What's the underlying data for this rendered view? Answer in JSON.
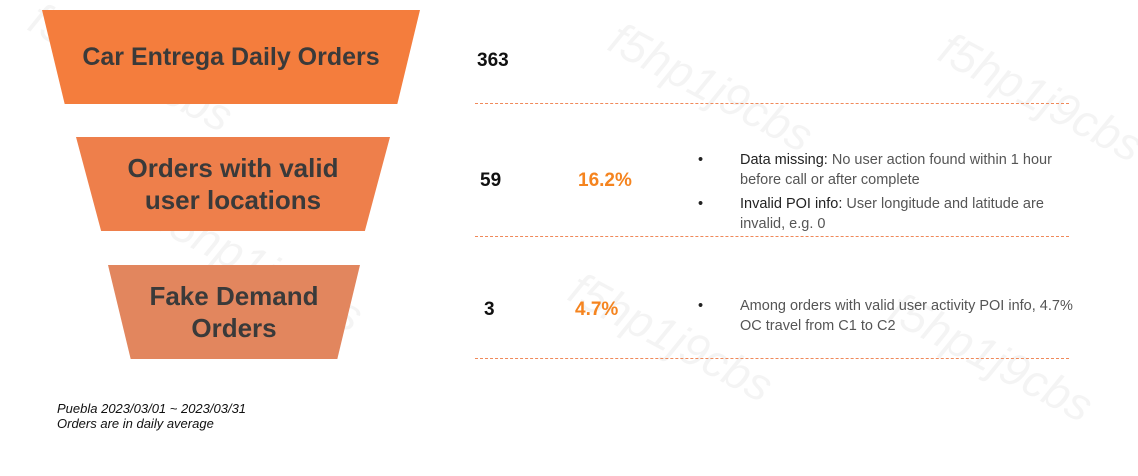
{
  "funnel": [
    {
      "label_lines": [
        "Car Entrega Daily Orders"
      ],
      "count": "363",
      "percent": ""
    },
    {
      "label_lines": [
        "Orders with valid",
        "user locations"
      ],
      "count": "59",
      "percent": "16.2%"
    },
    {
      "label_lines": [
        "Fake Demand",
        "Orders"
      ],
      "count": "3",
      "percent": "4.7%"
    }
  ],
  "notes": {
    "stage2": [
      {
        "bullet": "•",
        "term": "Data missing:",
        "text": " No user action found within 1 hour before call or after complete"
      },
      {
        "bullet": "•",
        "term": "Invalid POI info:",
        "text": " User longitude and latitude are invalid, e.g. 0"
      }
    ],
    "stage3": [
      {
        "bullet": "•",
        "term": "",
        "text": "Among orders with valid user activity POI info, 4.7% OC travel from C1 to C2"
      }
    ]
  },
  "footer": {
    "line1": "Puebla 2023/03/01 ~ 2023/03/31",
    "line2": "Orders are in daily average"
  },
  "watermark": "f5hp1j9cbs",
  "colors": {
    "stage1": "#f47d3d",
    "stage2": "#ee7f4b",
    "stage3": "#e2865e",
    "percent": "#f5841f",
    "divider": "#f0895a"
  }
}
